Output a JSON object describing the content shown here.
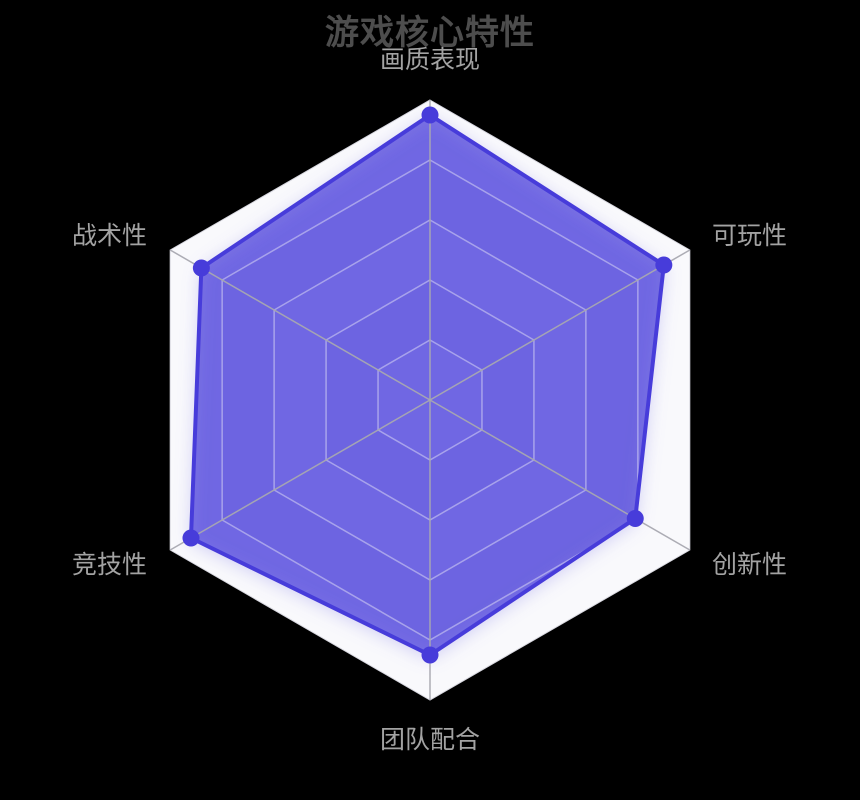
{
  "page": {
    "background": "#000000"
  },
  "chart_data": {
    "type": "radar",
    "title": "游戏核心特性",
    "levels": 5,
    "grid": true,
    "legend_position": "none",
    "indicators": [
      {
        "label": "画质表现",
        "max": 100
      },
      {
        "label": "可玩性",
        "max": 100
      },
      {
        "label": "创新性",
        "max": 100
      },
      {
        "label": "团队配合",
        "max": 100
      },
      {
        "label": "竞技性",
        "max": 100
      },
      {
        "label": "战术性",
        "max": 100
      }
    ],
    "series": [
      {
        "name": "游戏核心特性",
        "values": [
          95,
          90,
          79,
          85,
          92,
          88
        ]
      }
    ],
    "style": {
      "title_color": "#4d4d4d",
      "label_color": "#a3a3a3",
      "fill_color": "rgba(71,60,218,0.70)",
      "stroke_color": "#473cda",
      "dot_color": "#473cda",
      "band_light": "#f9f9fc",
      "band_dark": "#eeeef3",
      "ring_line": "#d8d8e0",
      "ring_line_over_fill": "rgba(255,255,255,0.42)",
      "spoke_line": "rgba(168,168,176,0.95)"
    }
  }
}
